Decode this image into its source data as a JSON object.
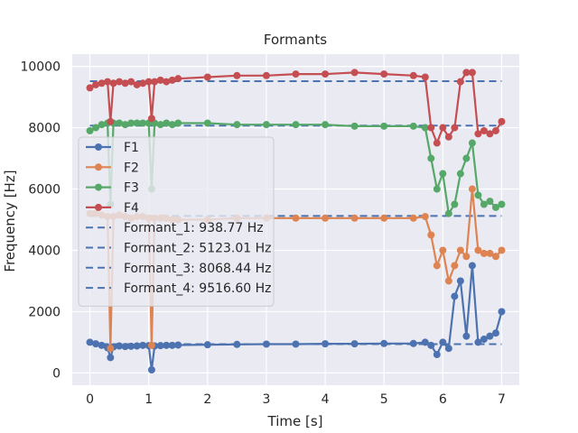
{
  "chart_data": {
    "type": "line",
    "title": "Formants",
    "xlabel": "Time [s]",
    "ylabel": "Frequency [Hz]",
    "xlim": [
      -0.3,
      7.3
    ],
    "ylim": [
      -400,
      10400
    ],
    "xticks": [
      0,
      1,
      2,
      3,
      4,
      5,
      6,
      7
    ],
    "yticks": [
      0,
      2000,
      4000,
      6000,
      8000,
      10000
    ],
    "xtick_labels": [
      "0",
      "1",
      "2",
      "3",
      "4",
      "5",
      "6",
      "7"
    ],
    "ytick_labels": [
      "0",
      "2000",
      "4000",
      "6000",
      "8000",
      "10000"
    ],
    "grid": true,
    "legend_position": "center-left",
    "colors": {
      "F1": "#4c72b0",
      "F2": "#dd8452",
      "F3": "#55a868",
      "F4": "#c44e52",
      "background": "#eaeaf2",
      "grid": "#ffffff"
    },
    "series": [
      {
        "name": "F1",
        "color": "#4c72b0",
        "x": [
          0.0,
          0.1,
          0.2,
          0.3,
          0.35,
          0.4,
          0.5,
          0.6,
          0.7,
          0.8,
          0.9,
          1.0,
          1.05,
          1.1,
          1.2,
          1.3,
          1.4,
          1.5,
          2.0,
          2.5,
          3.0,
          3.5,
          4.0,
          4.5,
          5.0,
          5.5,
          5.7,
          5.8,
          5.9,
          6.0,
          6.1,
          6.2,
          6.3,
          6.4,
          6.5,
          6.6,
          6.7,
          6.8,
          6.9,
          7.0
        ],
        "y": [
          1000,
          950,
          900,
          820,
          500,
          850,
          880,
          860,
          870,
          880,
          900,
          890,
          100,
          880,
          890,
          900,
          900,
          910,
          920,
          930,
          940,
          940,
          950,
          950,
          960,
          960,
          1000,
          900,
          600,
          1000,
          800,
          2500,
          3000,
          1200,
          3500,
          1000,
          1100,
          1200,
          1300,
          2000
        ]
      },
      {
        "name": "F2",
        "color": "#dd8452",
        "x": [
          0.0,
          0.1,
          0.2,
          0.3,
          0.35,
          0.4,
          0.5,
          0.6,
          0.7,
          0.8,
          0.9,
          1.0,
          1.05,
          1.1,
          1.2,
          1.3,
          1.4,
          1.5,
          2.0,
          2.5,
          3.0,
          3.5,
          4.0,
          4.5,
          5.0,
          5.5,
          5.7,
          5.8,
          5.9,
          6.0,
          6.1,
          6.2,
          6.3,
          6.4,
          6.5,
          6.6,
          6.7,
          6.8,
          6.9,
          7.0
        ],
        "y": [
          5200,
          5200,
          5150,
          5100,
          800,
          5100,
          5150,
          5100,
          5050,
          5100,
          5100,
          5050,
          900,
          5050,
          5050,
          5050,
          5000,
          5000,
          5000,
          5050,
          5050,
          5050,
          5050,
          5050,
          5050,
          5050,
          5100,
          4500,
          3500,
          4000,
          3000,
          3500,
          4000,
          3800,
          6000,
          4000,
          3900,
          3900,
          3800,
          4000
        ]
      },
      {
        "name": "F3",
        "color": "#55a868",
        "x": [
          0.0,
          0.1,
          0.2,
          0.3,
          0.35,
          0.4,
          0.5,
          0.6,
          0.7,
          0.8,
          0.9,
          1.0,
          1.05,
          1.1,
          1.2,
          1.3,
          1.4,
          1.5,
          2.0,
          2.5,
          3.0,
          3.5,
          4.0,
          4.5,
          5.0,
          5.5,
          5.7,
          5.8,
          5.9,
          6.0,
          6.1,
          6.2,
          6.3,
          6.4,
          6.5,
          6.6,
          6.7,
          6.8,
          6.9,
          7.0
        ],
        "y": [
          7900,
          8000,
          8100,
          8150,
          5500,
          8150,
          8150,
          8100,
          8150,
          8150,
          8150,
          8150,
          6000,
          8150,
          8100,
          8150,
          8100,
          8150,
          8150,
          8100,
          8100,
          8100,
          8100,
          8050,
          8050,
          8050,
          8000,
          7000,
          6000,
          6500,
          5200,
          5500,
          6500,
          7000,
          7500,
          5800,
          5500,
          5600,
          5400,
          5500
        ]
      },
      {
        "name": "F4",
        "color": "#c44e52",
        "x": [
          0.0,
          0.1,
          0.2,
          0.3,
          0.35,
          0.4,
          0.5,
          0.6,
          0.7,
          0.8,
          0.9,
          1.0,
          1.05,
          1.1,
          1.2,
          1.3,
          1.4,
          1.5,
          2.0,
          2.5,
          3.0,
          3.5,
          4.0,
          4.5,
          5.0,
          5.5,
          5.7,
          5.8,
          5.9,
          6.0,
          6.1,
          6.2,
          6.3,
          6.4,
          6.5,
          6.6,
          6.7,
          6.8,
          6.9,
          7.0
        ],
        "y": [
          9300,
          9400,
          9450,
          9500,
          8200,
          9450,
          9500,
          9450,
          9500,
          9400,
          9450,
          9500,
          8300,
          9500,
          9550,
          9500,
          9550,
          9600,
          9650,
          9700,
          9700,
          9750,
          9750,
          9800,
          9750,
          9700,
          9650,
          8000,
          7500,
          8000,
          7700,
          8000,
          9500,
          9800,
          9800,
          7800,
          7900,
          7800,
          7900,
          8200
        ]
      }
    ],
    "hlines": [
      {
        "name": "Formant_1: 938.77 Hz",
        "y": 938.77,
        "color": "#4c72b0"
      },
      {
        "name": "Formant_2: 5123.01 Hz",
        "y": 5123.01,
        "color": "#4c72b0"
      },
      {
        "name": "Formant_3: 8068.44 Hz",
        "y": 8068.44,
        "color": "#4c72b0"
      },
      {
        "name": "Formant_4: 9516.60 Hz",
        "y": 9516.6,
        "color": "#4c72b0"
      }
    ],
    "hline_xrange": [
      0.0,
      7.0
    ]
  }
}
